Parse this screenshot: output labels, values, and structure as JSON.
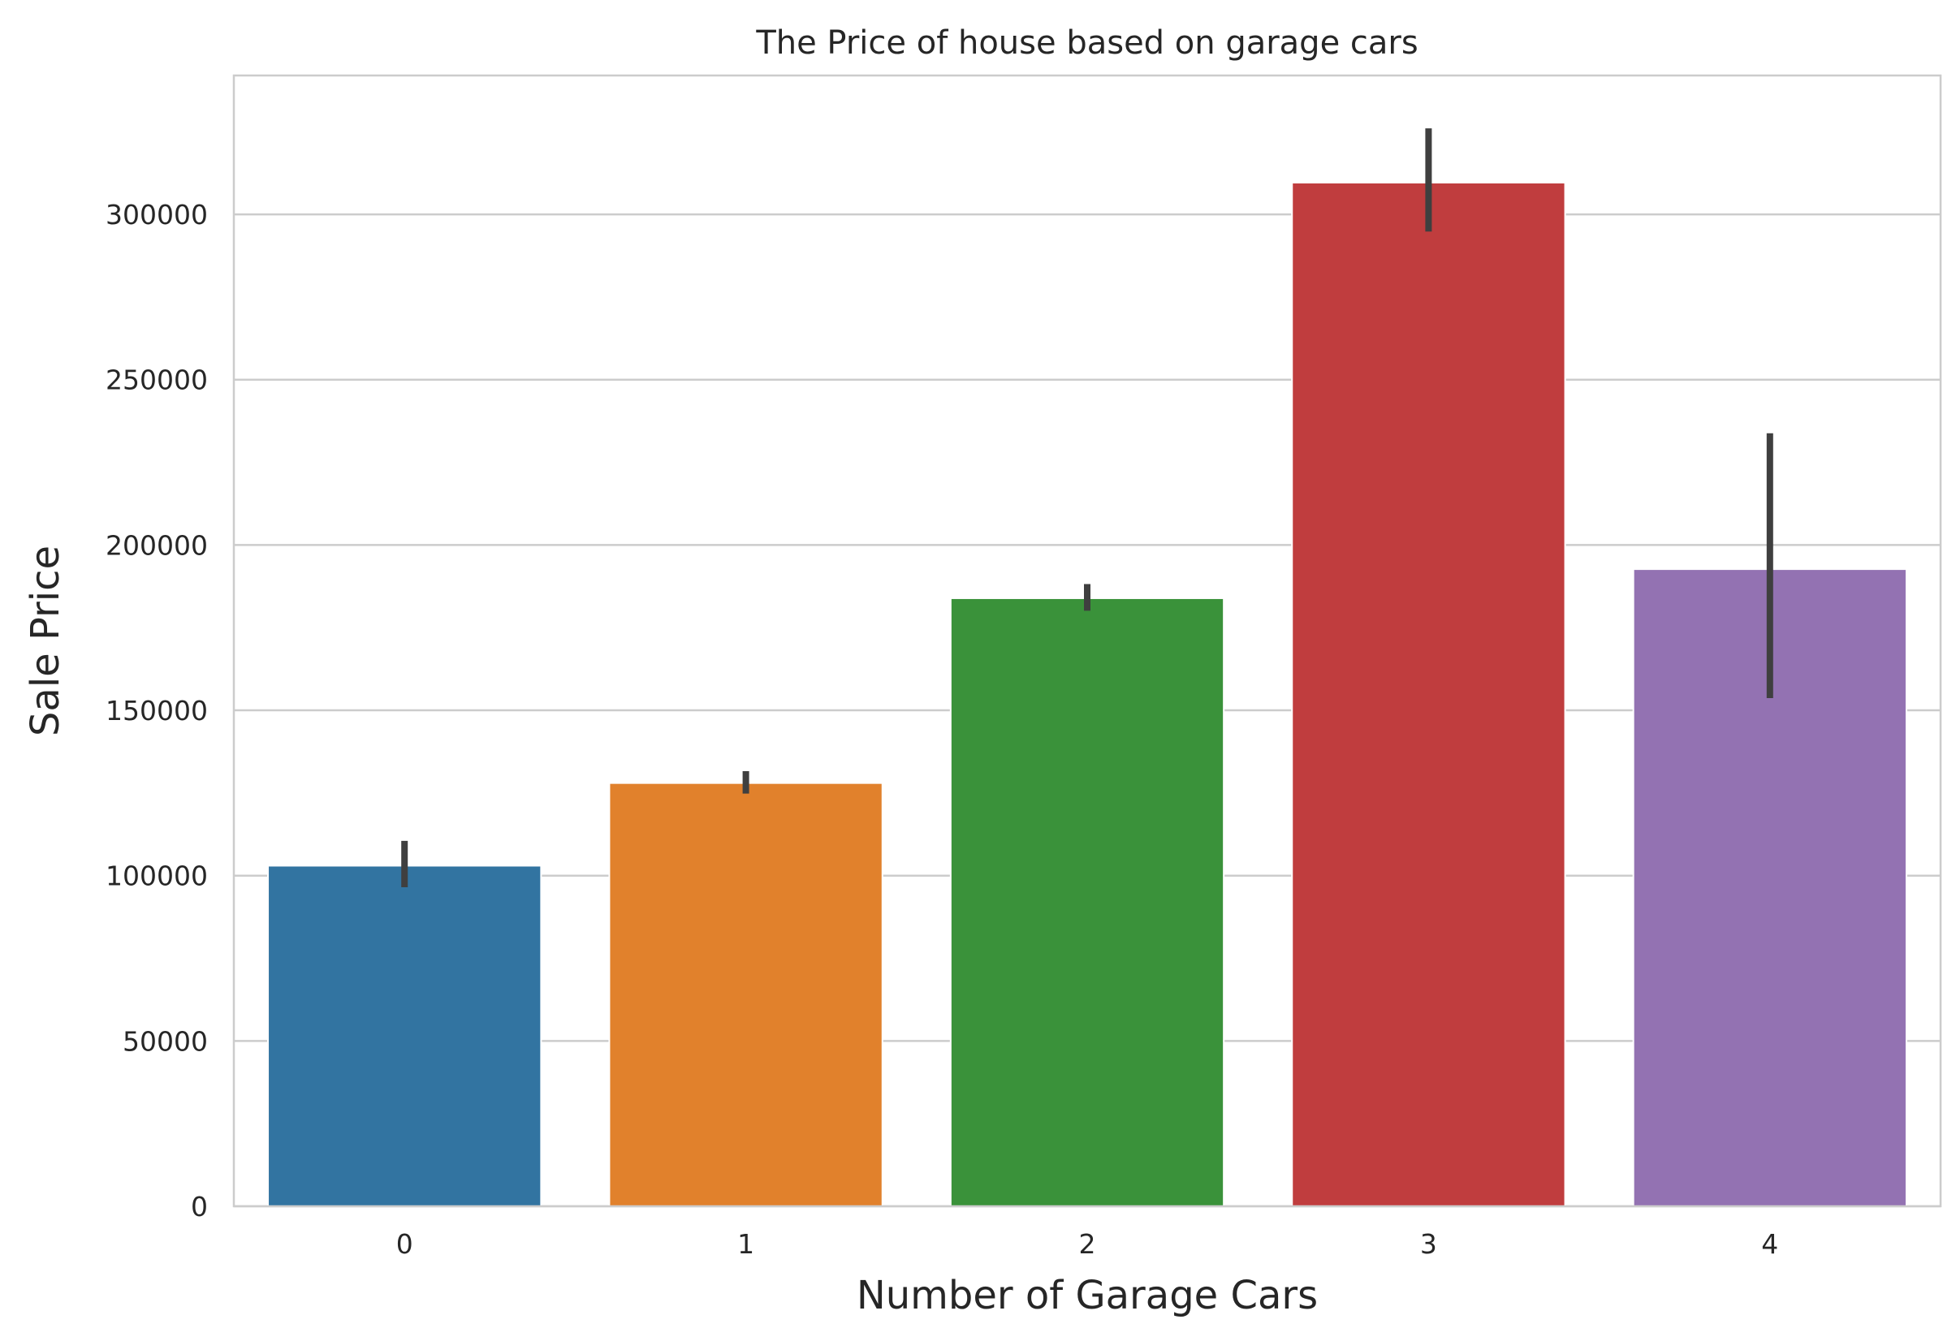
{
  "chart_data": {
    "type": "bar",
    "title": "The Price of house based on garage cars",
    "xlabel": "Number of Garage Cars",
    "ylabel": "Sale Price",
    "categories": [
      "0",
      "1",
      "2",
      "3",
      "4"
    ],
    "values": [
      103000,
      128000,
      183900,
      309600,
      192700
    ],
    "error_low": [
      96500,
      124800,
      180100,
      294800,
      153700
    ],
    "error_high": [
      110500,
      131600,
      188200,
      326000,
      233800
    ],
    "colors": [
      "#3274a1",
      "#e1812c",
      "#3a923a",
      "#c03d3e",
      "#9372b2"
    ],
    "error_color": "#3f3f3f",
    "ylim": [
      0,
      342000
    ],
    "yticks": [
      0,
      50000,
      100000,
      150000,
      200000,
      250000,
      300000
    ],
    "ytick_labels": [
      "0",
      "50000",
      "100000",
      "150000",
      "200000",
      "250000",
      "300000"
    ],
    "grid": "horizontal",
    "legend": "none"
  }
}
